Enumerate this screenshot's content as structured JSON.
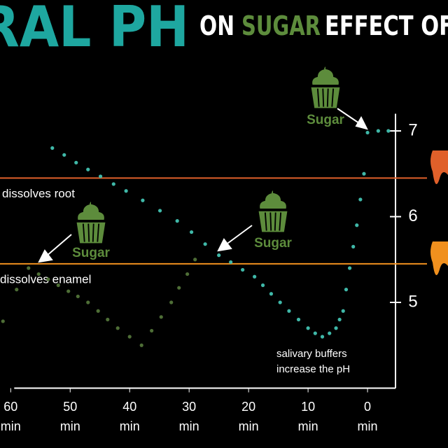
{
  "chart_data": {
    "type": "line",
    "title_parts": [
      "EFFECT OF",
      "SUGAR",
      "ON",
      "ORAL PH"
    ],
    "xlim": [
      -4.7,
      61.8
    ],
    "xticks": [
      {
        "value": 0,
        "label": [
          "0",
          "min"
        ]
      },
      {
        "value": 10,
        "label": [
          "10",
          "min"
        ]
      },
      {
        "value": 20,
        "label": [
          "20",
          "min"
        ]
      },
      {
        "value": 30,
        "label": [
          "30",
          "min"
        ]
      },
      {
        "value": 40,
        "label": [
          "40",
          "min"
        ]
      },
      {
        "value": 50,
        "label": [
          "50",
          "min"
        ]
      },
      {
        "value": 60,
        "label": [
          "60",
          "min"
        ]
      }
    ],
    "ylim": [
      4,
      7.2
    ],
    "yticks": [
      5,
      6,
      7
    ],
    "series": [
      {
        "color": "#3fb8a8",
        "x": [
          -3.5,
          -1.8,
          0,
          0.6,
          1.2,
          1.8,
          2.4,
          3,
          3.6,
          4.1,
          4.7,
          5.3,
          6.4,
          7.6,
          8.8,
          10,
          11.6,
          13.2,
          14.7,
          16.2,
          17.6,
          19,
          21,
          23,
          25,
          27.3,
          29.6,
          32,
          34.9,
          37.8,
          40.6,
          42.7,
          44.9,
          47,
          49,
          51,
          53
        ],
        "values": [
          7,
          7,
          6.98,
          6.5,
          6.2,
          5.9,
          5.65,
          5.4,
          5.15,
          4.9,
          4.8,
          4.7,
          4.64,
          4.6,
          4.64,
          4.7,
          4.8,
          4.9,
          5.0,
          5.1,
          5.2,
          5.3,
          5.38,
          5.47,
          5.55,
          5.68,
          5.82,
          5.95,
          6.07,
          6.19,
          6.3,
          6.38,
          6.47,
          6.55,
          6.63,
          6.72,
          6.8
        ]
      },
      {
        "color": "#4e6e36",
        "x": [
          29,
          30.3,
          31.7,
          33,
          34.7,
          36.3,
          38,
          40,
          42,
          43.7,
          45.3,
          47,
          48.7,
          50.3,
          52,
          53.7,
          55.3,
          57,
          59,
          61.3
        ],
        "values": [
          5.5,
          5.33,
          5.17,
          5.0,
          4.83,
          4.67,
          4.5,
          4.6,
          4.7,
          4.8,
          4.9,
          5.0,
          5.07,
          5.13,
          5.2,
          5.27,
          5.33,
          5.4,
          5.15,
          4.78
        ]
      }
    ],
    "thresholds": [
      {
        "value": 6.45,
        "label": "dissolves root",
        "color": "#e0602a"
      },
      {
        "value": 5.45,
        "label": "dissolves enamel",
        "color": "#f0901e"
      }
    ],
    "sugar_label": "Sugar",
    "note": [
      "salivary buffers",
      "increase the pH"
    ]
  }
}
